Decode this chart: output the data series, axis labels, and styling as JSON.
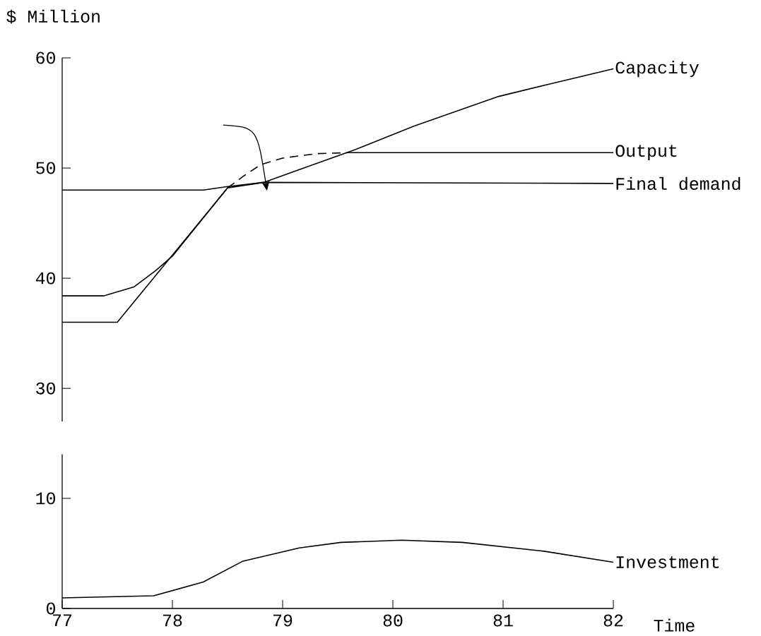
{
  "chart_data": [
    {
      "type": "line",
      "ylabel": "$ Million",
      "xlim": [
        77,
        82
      ],
      "ylim": [
        27,
        60
      ],
      "yticks": [
        30,
        40,
        50,
        60
      ],
      "tick_labels": "y",
      "marker": "none",
      "grid": false,
      "series": [
        {
          "name": "Capacity",
          "color": "#000000",
          "x": [
            77,
            77.38,
            77.65,
            77.85,
            78.0,
            78.5,
            78.83,
            79.08,
            79.64,
            80.19,
            80.96,
            81.41,
            82
          ],
          "values": [
            38.4,
            38.4,
            39.2,
            40.7,
            42.0,
            48.2,
            48.7,
            49.6,
            51.6,
            53.8,
            56.5,
            57.6,
            59.0
          ]
        },
        {
          "name": "Output",
          "color": "#000000",
          "x": [
            77,
            77.5,
            78.5,
            79.0,
            79.6,
            82
          ],
          "values": [
            36.0,
            36.0,
            48.2,
            null,
            51.4,
            51.4
          ]
        },
        {
          "color": "#000000",
          "line_style": "dashed",
          "x": [
            78.5,
            78.65,
            78.8,
            79.0,
            79.3,
            79.6
          ],
          "values": [
            48.2,
            49.3,
            50.3,
            50.9,
            51.3,
            51.4
          ]
        },
        {
          "name": "Final demand",
          "color": "#000000",
          "x": [
            77,
            78.28,
            78.49,
            78.83,
            82
          ],
          "values": [
            48.0,
            48.0,
            48.3,
            48.7,
            48.6
          ]
        }
      ]
    },
    {
      "type": "line",
      "xlabel": "Time",
      "xlim": [
        77,
        82
      ],
      "ylim": [
        0,
        14
      ],
      "xticks": [
        77,
        78,
        79,
        80,
        81,
        82
      ],
      "yticks": [
        0,
        10
      ],
      "marker": "none",
      "grid": false,
      "series": [
        {
          "name": "Investment",
          "color": "#000000",
          "x": [
            77,
            77.83,
            78.28,
            78.64,
            79.15,
            79.53,
            80.08,
            80.63,
            81.37,
            82
          ],
          "values": [
            0.96,
            1.15,
            2.4,
            4.3,
            5.5,
            6.0,
            6.2,
            6.0,
            5.2,
            4.2
          ]
        }
      ]
    }
  ]
}
